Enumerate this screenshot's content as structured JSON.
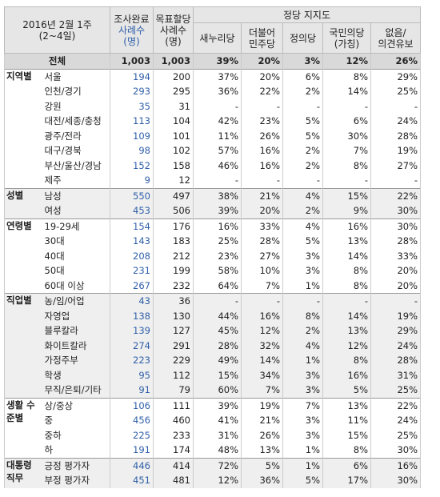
{
  "header": {
    "title": [
      "2016년 2월 1주",
      "(2~4일)"
    ],
    "completed": [
      "조사완료",
      "사례수",
      "(명)"
    ],
    "target": [
      "목표할당",
      "사례수",
      "(명)"
    ],
    "group": "정당 지지도",
    "parties": [
      [
        "새누리당"
      ],
      [
        "더불어",
        "민주당"
      ],
      [
        "정의당"
      ],
      [
        "국민의당",
        "(가칭)"
      ],
      [
        "없음/",
        "의견유보"
      ]
    ]
  },
  "total": {
    "name": "전체",
    "values": [
      "1,003",
      "1,003",
      "39%",
      "20%",
      "3%",
      "12%",
      "26%"
    ]
  },
  "groups": [
    {
      "label": "지역별",
      "rows": [
        {
          "name": "서울",
          "values": [
            "194",
            "200",
            "37%",
            "20%",
            "6%",
            "8%",
            "29%"
          ]
        },
        {
          "name": "인천/경기",
          "values": [
            "293",
            "295",
            "36%",
            "22%",
            "2%",
            "14%",
            "25%"
          ]
        },
        {
          "name": "강원",
          "values": [
            "35",
            "31",
            "-",
            "-",
            "-",
            "-",
            "-"
          ]
        },
        {
          "name": "대전/세종/충청",
          "values": [
            "113",
            "104",
            "42%",
            "23%",
            "5%",
            "6%",
            "24%"
          ]
        },
        {
          "name": "광주/전라",
          "values": [
            "109",
            "101",
            "11%",
            "26%",
            "5%",
            "30%",
            "28%"
          ]
        },
        {
          "name": "대구/경북",
          "values": [
            "98",
            "102",
            "57%",
            "16%",
            "2%",
            "7%",
            "19%"
          ]
        },
        {
          "name": "부산/울산/경남",
          "values": [
            "152",
            "158",
            "46%",
            "16%",
            "2%",
            "8%",
            "27%"
          ]
        },
        {
          "name": "제주",
          "values": [
            "9",
            "12",
            "-",
            "-",
            "-",
            "-",
            "-"
          ]
        }
      ]
    },
    {
      "label": "성별",
      "rows": [
        {
          "name": "남성",
          "values": [
            "550",
            "497",
            "38%",
            "21%",
            "4%",
            "15%",
            "22%"
          ]
        },
        {
          "name": "여성",
          "values": [
            "453",
            "506",
            "39%",
            "20%",
            "2%",
            "9%",
            "30%"
          ]
        }
      ]
    },
    {
      "label": "연령별",
      "rows": [
        {
          "name": "19-29세",
          "values": [
            "154",
            "176",
            "16%",
            "33%",
            "4%",
            "16%",
            "30%"
          ]
        },
        {
          "name": "30대",
          "values": [
            "143",
            "183",
            "25%",
            "28%",
            "5%",
            "13%",
            "28%"
          ]
        },
        {
          "name": "40대",
          "values": [
            "208",
            "212",
            "23%",
            "27%",
            "3%",
            "14%",
            "33%"
          ]
        },
        {
          "name": "50대",
          "values": [
            "231",
            "199",
            "58%",
            "10%",
            "3%",
            "8%",
            "20%"
          ]
        },
        {
          "name": "60대 이상",
          "values": [
            "267",
            "232",
            "64%",
            "7%",
            "1%",
            "8%",
            "20%"
          ]
        }
      ]
    },
    {
      "label": "직업별",
      "rows": [
        {
          "name": "농/임/어업",
          "values": [
            "43",
            "36",
            "-",
            "-",
            "-",
            "-",
            "-"
          ]
        },
        {
          "name": "자영업",
          "values": [
            "138",
            "130",
            "44%",
            "16%",
            "8%",
            "14%",
            "19%"
          ]
        },
        {
          "name": "블루칼라",
          "values": [
            "139",
            "127",
            "45%",
            "12%",
            "2%",
            "13%",
            "29%"
          ]
        },
        {
          "name": "화이트칼라",
          "values": [
            "274",
            "291",
            "28%",
            "32%",
            "4%",
            "12%",
            "24%"
          ]
        },
        {
          "name": "가정주부",
          "values": [
            "223",
            "229",
            "49%",
            "14%",
            "1%",
            "8%",
            "28%"
          ]
        },
        {
          "name": "학생",
          "values": [
            "95",
            "112",
            "15%",
            "34%",
            "3%",
            "16%",
            "31%"
          ]
        },
        {
          "name": "무직/은퇴/기타",
          "values": [
            "91",
            "79",
            "60%",
            "7%",
            "3%",
            "5%",
            "25%"
          ]
        }
      ]
    },
    {
      "label": "생활 수준별",
      "rows": [
        {
          "name": "상/중상",
          "values": [
            "106",
            "111",
            "39%",
            "19%",
            "7%",
            "13%",
            "22%"
          ]
        },
        {
          "name": "중",
          "values": [
            "456",
            "460",
            "41%",
            "21%",
            "3%",
            "11%",
            "24%"
          ]
        },
        {
          "name": "중하",
          "values": [
            "225",
            "233",
            "31%",
            "26%",
            "3%",
            "15%",
            "25%"
          ]
        },
        {
          "name": "하",
          "values": [
            "191",
            "174",
            "48%",
            "13%",
            "1%",
            "8%",
            "30%"
          ]
        }
      ]
    },
    {
      "label": "대통령 직무",
      "rows": [
        {
          "name": "긍정 평가자",
          "values": [
            "446",
            "414",
            "72%",
            "5%",
            "1%",
            "6%",
            "16%"
          ]
        },
        {
          "name": "부정 평가자",
          "values": [
            "451",
            "481",
            "12%",
            "36%",
            "5%",
            "17%",
            "30%"
          ]
        }
      ]
    }
  ]
}
